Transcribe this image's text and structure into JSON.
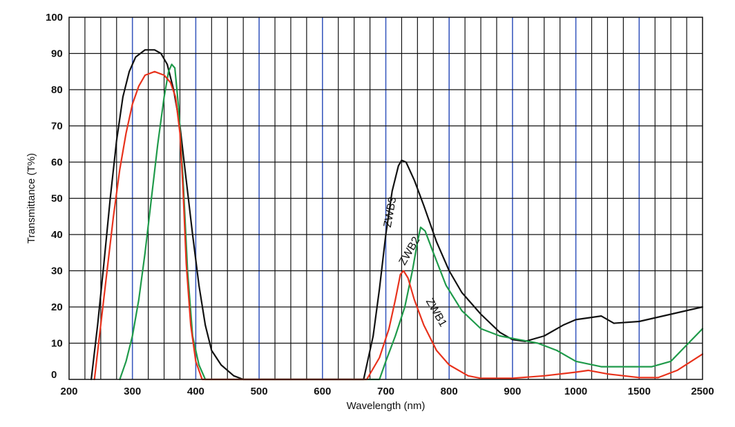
{
  "chart_data": {
    "type": "line",
    "title": "",
    "xlabel": "Wavelength (nm)",
    "ylabel": "Transmittance (T%)",
    "ylim": [
      0,
      100
    ],
    "grid": true,
    "x_scale": "piecewise (200-1000 nm linear; 1000-2500 nm compressed)",
    "x_ticks": [
      "200",
      "300",
      "400",
      "500",
      "600",
      "700",
      "800",
      "900",
      "1000",
      "1500",
      "2500"
    ],
    "y_ticks": [
      "0",
      "10",
      "20",
      "30",
      "40",
      "50",
      "60",
      "70",
      "80",
      "90",
      "100"
    ],
    "colors": {
      "grid_major": "#3b5bbf",
      "grid_minor": "#111111",
      "ZWB1": "#e8321c",
      "ZWB2": "#1f9a4a",
      "ZWB3": "#111111"
    },
    "series": [
      {
        "name": "ZWB3",
        "label": "ZWB3",
        "color": "#111111",
        "points": [
          [
            235,
            0
          ],
          [
            245,
            15
          ],
          [
            255,
            32
          ],
          [
            265,
            50
          ],
          [
            275,
            66
          ],
          [
            285,
            78
          ],
          [
            295,
            85
          ],
          [
            305,
            89
          ],
          [
            320,
            91
          ],
          [
            335,
            91
          ],
          [
            345,
            90
          ],
          [
            355,
            87
          ],
          [
            365,
            80
          ],
          [
            375,
            70
          ],
          [
            385,
            55
          ],
          [
            395,
            40
          ],
          [
            405,
            26
          ],
          [
            415,
            15
          ],
          [
            425,
            8
          ],
          [
            440,
            4
          ],
          [
            460,
            1
          ],
          [
            475,
            0
          ],
          [
            665,
            0
          ],
          [
            680,
            12
          ],
          [
            690,
            25
          ],
          [
            700,
            40
          ],
          [
            710,
            52
          ],
          [
            720,
            59
          ],
          [
            725,
            60.5
          ],
          [
            732,
            60
          ],
          [
            745,
            55
          ],
          [
            760,
            48
          ],
          [
            780,
            38
          ],
          [
            800,
            30
          ],
          [
            820,
            24
          ],
          [
            850,
            18
          ],
          [
            880,
            13
          ],
          [
            900,
            11
          ],
          [
            920,
            10.5
          ],
          [
            950,
            12
          ],
          [
            980,
            15
          ],
          [
            1000,
            16.5
          ],
          [
            1200,
            17.5
          ],
          [
            1300,
            15.5
          ],
          [
            1500,
            16
          ],
          [
            2000,
            18
          ],
          [
            2500,
            20
          ]
        ]
      },
      {
        "name": "ZWB2",
        "label": "ZWB2",
        "color": "#1f9a4a",
        "points": [
          [
            280,
            0
          ],
          [
            290,
            5
          ],
          [
            300,
            12
          ],
          [
            310,
            22
          ],
          [
            320,
            35
          ],
          [
            330,
            50
          ],
          [
            340,
            65
          ],
          [
            350,
            78
          ],
          [
            357,
            85
          ],
          [
            362,
            87
          ],
          [
            367,
            86
          ],
          [
            373,
            75
          ],
          [
            380,
            55
          ],
          [
            387,
            30
          ],
          [
            395,
            12
          ],
          [
            405,
            4
          ],
          [
            415,
            0
          ],
          [
            690,
            0
          ],
          [
            700,
            5
          ],
          [
            715,
            12
          ],
          [
            730,
            20
          ],
          [
            742,
            30
          ],
          [
            750,
            38
          ],
          [
            755,
            42
          ],
          [
            762,
            41
          ],
          [
            775,
            35
          ],
          [
            795,
            26
          ],
          [
            820,
            19
          ],
          [
            850,
            14
          ],
          [
            880,
            12
          ],
          [
            910,
            11
          ],
          [
            940,
            10
          ],
          [
            970,
            8
          ],
          [
            1000,
            5
          ],
          [
            1200,
            3.5
          ],
          [
            1700,
            3.5
          ],
          [
            2000,
            5
          ],
          [
            2500,
            14
          ]
        ]
      },
      {
        "name": "ZWB1",
        "label": "ZWB1",
        "color": "#e8321c",
        "points": [
          [
            240,
            0
          ],
          [
            250,
            15
          ],
          [
            260,
            30
          ],
          [
            270,
            45
          ],
          [
            280,
            58
          ],
          [
            290,
            68
          ],
          [
            300,
            76
          ],
          [
            310,
            81
          ],
          [
            320,
            84
          ],
          [
            335,
            85
          ],
          [
            350,
            84
          ],
          [
            360,
            82
          ],
          [
            368,
            78
          ],
          [
            375,
            68
          ],
          [
            380,
            52
          ],
          [
            385,
            32
          ],
          [
            392,
            15
          ],
          [
            400,
            5
          ],
          [
            410,
            0
          ],
          [
            670,
            0
          ],
          [
            690,
            6
          ],
          [
            705,
            14
          ],
          [
            715,
            22
          ],
          [
            723,
            29
          ],
          [
            728,
            30
          ],
          [
            735,
            28
          ],
          [
            745,
            22
          ],
          [
            760,
            15
          ],
          [
            780,
            8
          ],
          [
            800,
            4
          ],
          [
            830,
            1
          ],
          [
            850,
            0.3
          ],
          [
            900,
            0.3
          ],
          [
            950,
            1
          ],
          [
            1000,
            2
          ],
          [
            1100,
            2.5
          ],
          [
            1250,
            1.5
          ],
          [
            1500,
            0.5
          ],
          [
            1800,
            0.5
          ],
          [
            2100,
            2.5
          ],
          [
            2500,
            7
          ]
        ]
      }
    ]
  }
}
